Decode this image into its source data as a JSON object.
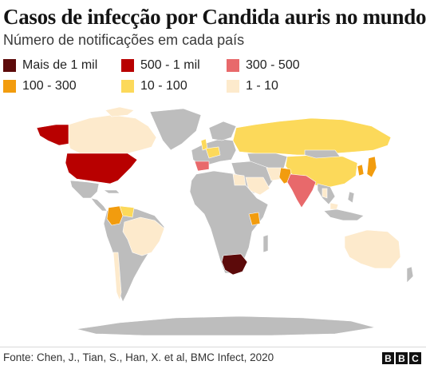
{
  "title": "Casos de infecção por Candida auris no mundo",
  "subtitle": "Número de notificações em cada país",
  "legend": [
    {
      "label": "Mais de 1 mil",
      "color": "#5c0a0a"
    },
    {
      "label": "500 - 1 mil",
      "color": "#b80000"
    },
    {
      "label": "300 - 500",
      "color": "#e8696b"
    },
    {
      "label": "100 - 300",
      "color": "#f29c0e"
    },
    {
      "label": "10 - 100",
      "color": "#fcd95a"
    },
    {
      "label": "1 - 10",
      "color": "#fdeacc"
    }
  ],
  "no_data_color": "#bdbdbd",
  "source": "Fonte: Chen, J., Tian, S., Han, X. et al, BMC Infect, 2020",
  "logo": [
    "B",
    "B",
    "C"
  ]
}
